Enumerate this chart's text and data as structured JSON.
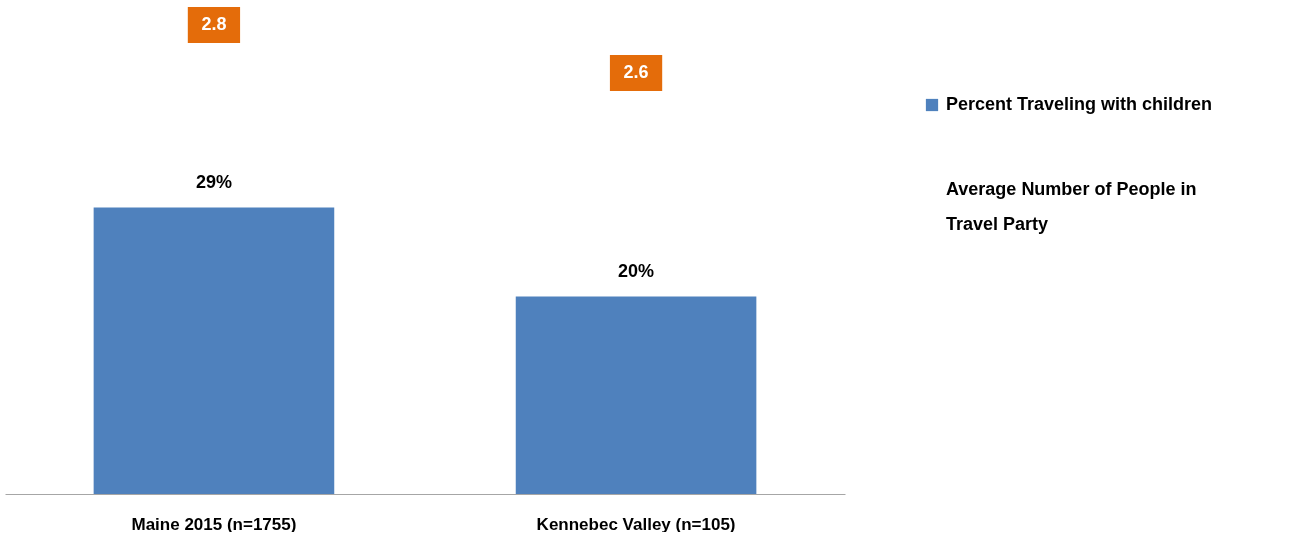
{
  "chart_data": {
    "type": "bar",
    "categories": [
      "Maine 2015 (n=1755)",
      "Kennebec Valley (n=105)"
    ],
    "series": [
      {
        "name": "Percent Traveling with children",
        "color": "#4f81bd",
        "values": [
          29,
          20
        ],
        "value_labels": [
          "29%",
          "20%"
        ]
      }
    ],
    "annotations": [
      "2.8",
      "2.6",
      "Average Number of People in Travel Party"
    ],
    "ylim": [
      0,
      50
    ],
    "tick_labels": "x",
    "grid": false,
    "legend": "right"
  }
}
